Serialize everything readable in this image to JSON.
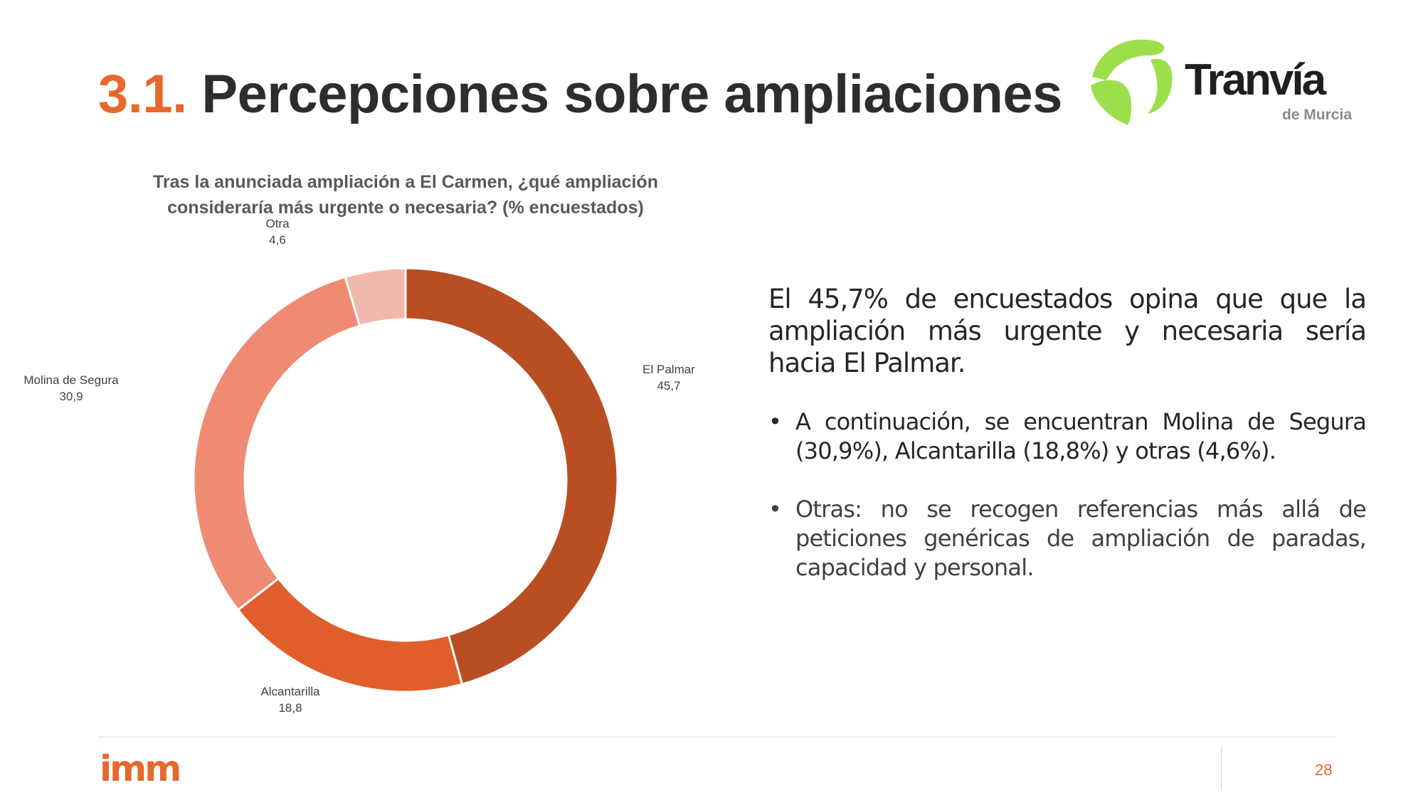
{
  "slide": {
    "title_number": "3.1.",
    "title_text": "Percepciones sobre ampliaciones",
    "page_number": "28"
  },
  "logos": {
    "tranvia_name": "Tranvía",
    "tranvia_subtitle": "de Murcia",
    "imm": "imm"
  },
  "colors": {
    "accent": "#e8672c",
    "el_palmar": "#b94e23",
    "alcantarilla": "#e05e2b",
    "molina": "#ef8b73",
    "otra": "#f3b8ad",
    "tranvia_green": "#9be04a"
  },
  "chart_data": {
    "type": "pie",
    "title_line1": "Tras la anunciada ampliación a El Carmen, ¿qué ampliación",
    "title_line2": "consideraría más urgente o necesaria? (% encuestados)",
    "categories": [
      "El Palmar",
      "Alcantarilla",
      "Molina de Segura",
      "Otra"
    ],
    "values": [
      45.7,
      18.8,
      30.9,
      4.6
    ],
    "value_labels": [
      "45,7",
      "18,8",
      "30,9",
      "4,6"
    ],
    "donut": true
  },
  "text": {
    "lead": "El 45,7% de encuestados opina que que la ampliación más urgente y necesaria sería hacia El Palmar.",
    "bullet1": "A continuación, se encuentran Molina de Segura (30,9%), Alcantarilla (18,8%) y otras (4,6%).",
    "bullet2": "Otras: no se recogen referencias más allá de peticiones genéricas de ampliación de paradas, capacidad y personal.",
    "bullet_symbol": "•"
  }
}
